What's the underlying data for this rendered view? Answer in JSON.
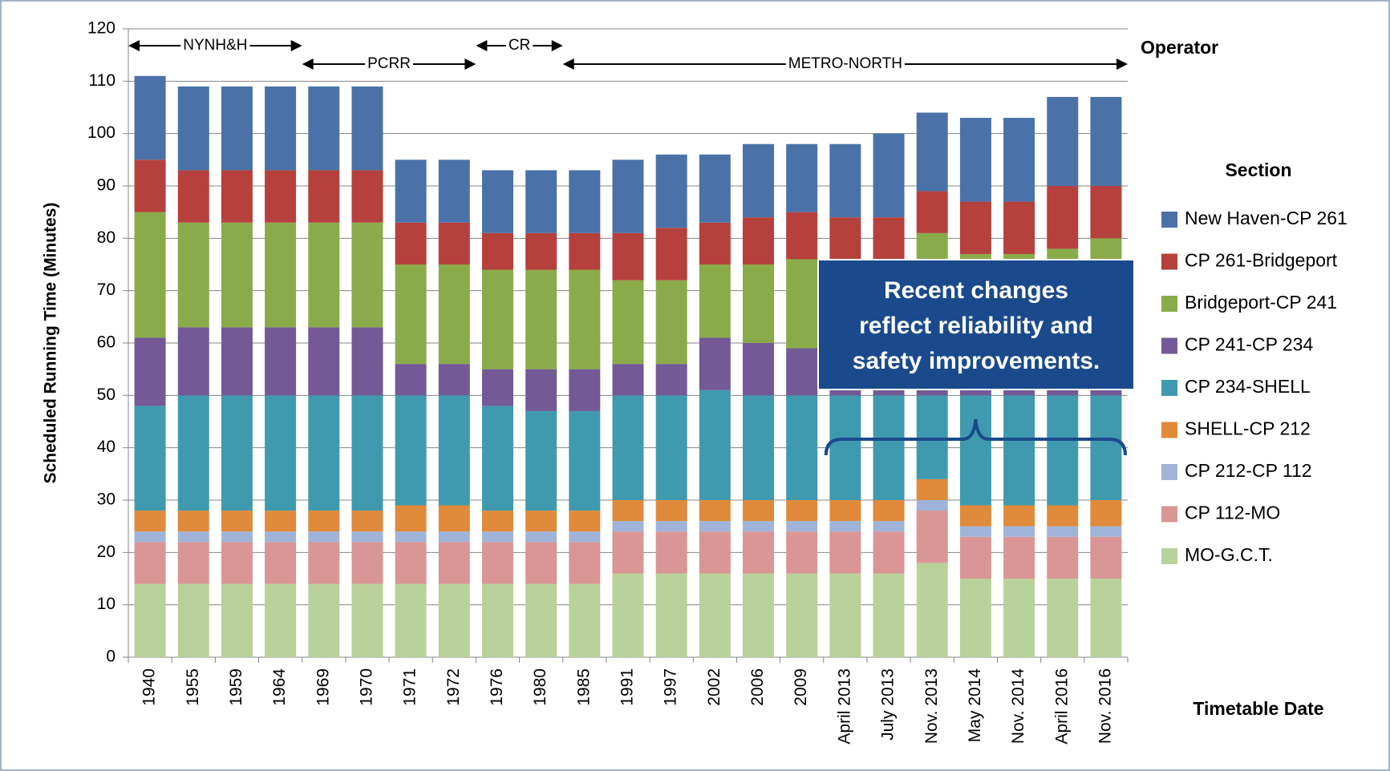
{
  "chart_data": {
    "type": "stacked_bar",
    "y_label": "Scheduled Running Time (Minutes)",
    "x_label": "Timetable Date",
    "legend_title": "Section",
    "operator_label": "Operator",
    "categories": [
      "1940",
      "1955",
      "1959",
      "1964",
      "1969",
      "1970",
      "1971",
      "1972",
      "1976",
      "1980",
      "1985",
      "1991",
      "1997",
      "2002",
      "2006",
      "2009",
      "April 2013",
      "July 2013",
      "Nov. 2013",
      "May 2014",
      "Nov. 2014",
      "April 2016",
      "Nov. 2016"
    ],
    "series": [
      {
        "name": "MO-G.C.T.",
        "color": "#b9d19a",
        "values": [
          14,
          14,
          14,
          14,
          14,
          14,
          14,
          14,
          14,
          14,
          14,
          16,
          16,
          16,
          16,
          16,
          16,
          16,
          18,
          15,
          15,
          15,
          15
        ]
      },
      {
        "name": "CP 112-MO",
        "color": "#d99694",
        "values": [
          8,
          8,
          8,
          8,
          8,
          8,
          8,
          8,
          8,
          8,
          8,
          8,
          8,
          8,
          8,
          8,
          8,
          8,
          10,
          8,
          8,
          8,
          8
        ]
      },
      {
        "name": "CP 212-CP 112",
        "color": "#9fb4d8",
        "values": [
          2,
          2,
          2,
          2,
          2,
          2,
          2,
          2,
          2,
          2,
          2,
          2,
          2,
          2,
          2,
          2,
          2,
          2,
          2,
          2,
          2,
          2,
          2
        ]
      },
      {
        "name": "SHELL-CP 212",
        "color": "#e08a3c",
        "values": [
          4,
          4,
          4,
          4,
          4,
          4,
          5,
          5,
          4,
          4,
          4,
          4,
          4,
          4,
          4,
          4,
          4,
          4,
          4,
          4,
          4,
          4,
          5
        ]
      },
      {
        "name": "CP 234-SHELL",
        "color": "#409aaf",
        "values": [
          20,
          22,
          22,
          22,
          22,
          22,
          21,
          21,
          20,
          19,
          19,
          20,
          20,
          21,
          20,
          20,
          20,
          20,
          16,
          21,
          21,
          21,
          20
        ]
      },
      {
        "name": "CP 241-CP 234",
        "color": "#735996",
        "values": [
          13,
          13,
          13,
          13,
          13,
          13,
          6,
          6,
          7,
          8,
          8,
          6,
          6,
          10,
          10,
          9,
          1,
          1,
          1,
          1,
          1,
          1,
          1
        ]
      },
      {
        "name": "Bridgeport-CP 241",
        "color": "#8aab4a",
        "values": [
          24,
          20,
          20,
          20,
          20,
          20,
          19,
          19,
          19,
          19,
          19,
          16,
          16,
          14,
          15,
          17,
          25,
          25,
          30,
          26,
          26,
          27,
          29
        ]
      },
      {
        "name": "CP 261-Bridgeport",
        "color": "#b6403c",
        "values": [
          10,
          10,
          10,
          10,
          10,
          10,
          8,
          8,
          7,
          7,
          7,
          9,
          10,
          8,
          9,
          9,
          8,
          8,
          8,
          10,
          10,
          12,
          10
        ]
      },
      {
        "name": "New Haven-CP 261",
        "color": "#4a72a8",
        "values": [
          16,
          16,
          16,
          16,
          16,
          16,
          12,
          12,
          12,
          12,
          12,
          14,
          14,
          13,
          14,
          13,
          14,
          16,
          15,
          16,
          16,
          17,
          17
        ]
      }
    ],
    "ylim": [
      0,
      120
    ],
    "yticks": [
      0,
      10,
      20,
      30,
      40,
      50,
      60,
      70,
      80,
      90,
      100,
      110,
      120
    ],
    "grid": true,
    "operators": [
      {
        "label": "NYNH&H",
        "from": "1940",
        "to": "1964",
        "row": 0
      },
      {
        "label": "PCRR",
        "from": "1969",
        "to": "1972",
        "row": 1
      },
      {
        "label": "CR",
        "from": "1976",
        "to": "1980",
        "row": 0
      },
      {
        "label": "METRO-NORTH",
        "from": "1985",
        "to": "Nov. 2016",
        "row": 1
      }
    ],
    "annotation": {
      "lines": [
        "Recent changes",
        "reflect reliability and",
        "safety improvements."
      ],
      "from": "April 2013",
      "to": "Nov. 2016"
    }
  }
}
